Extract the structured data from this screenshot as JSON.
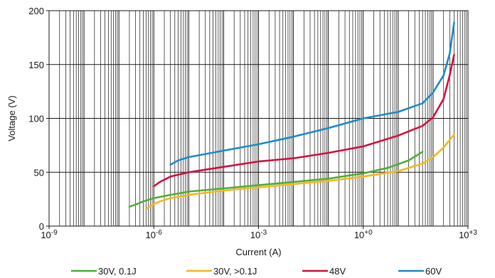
{
  "chart_data": {
    "type": "line",
    "title": "",
    "xlabel": "Current (A)",
    "ylabel": "Voltage (V)",
    "x_scale": "log",
    "xlim": [
      1e-09,
      1000
    ],
    "ylim": [
      0,
      200
    ],
    "x_ticks": [
      {
        "value": 1e-09,
        "base": "10",
        "exp": "-9"
      },
      {
        "value": 1e-06,
        "base": "10",
        "exp": "-6"
      },
      {
        "value": 0.001,
        "base": "10",
        "exp": "-3"
      },
      {
        "value": 1,
        "base": "10",
        "exp": "+0"
      },
      {
        "value": 1000,
        "base": "10",
        "exp": "+3"
      }
    ],
    "y_ticks": [
      {
        "value": 0,
        "label": "0"
      },
      {
        "value": 50,
        "label": "50"
      },
      {
        "value": 100,
        "label": "100"
      },
      {
        "value": 150,
        "label": "150"
      },
      {
        "value": 200,
        "label": "200"
      }
    ],
    "grid": true,
    "legend_position": "bottom",
    "series": [
      {
        "name": "30V, 0.1J",
        "color": "#4fae3b",
        "points": [
          [
            2e-07,
            18
          ],
          [
            3e-07,
            20
          ],
          [
            5e-07,
            23
          ],
          [
            1e-06,
            26
          ],
          [
            3e-06,
            29
          ],
          [
            1e-05,
            32
          ],
          [
            0.0001,
            35
          ],
          [
            0.001,
            38
          ],
          [
            0.01,
            41
          ],
          [
            0.1,
            44
          ],
          [
            1,
            49
          ],
          [
            5,
            54
          ],
          [
            20,
            61
          ],
          [
            50,
            69
          ]
        ]
      },
      {
        "name": "30V, >0.1J",
        "color": "#f5b81c",
        "points": [
          [
            6e-07,
            16
          ],
          [
            8e-07,
            19
          ],
          [
            1.5e-06,
            23
          ],
          [
            3e-06,
            26
          ],
          [
            1e-05,
            29
          ],
          [
            0.0001,
            33
          ],
          [
            0.001,
            36
          ],
          [
            0.01,
            39
          ],
          [
            0.1,
            42
          ],
          [
            1,
            46
          ],
          [
            10,
            51
          ],
          [
            50,
            58
          ],
          [
            100,
            64
          ],
          [
            200,
            73
          ],
          [
            400,
            85
          ]
        ]
      },
      {
        "name": "48V",
        "color": "#d2123f",
        "points": [
          [
            1e-06,
            37
          ],
          [
            1.5e-06,
            41
          ],
          [
            3e-06,
            46
          ],
          [
            1e-05,
            50
          ],
          [
            0.0001,
            55
          ],
          [
            0.001,
            60
          ],
          [
            0.01,
            63
          ],
          [
            0.1,
            68
          ],
          [
            1,
            74
          ],
          [
            10,
            84
          ],
          [
            50,
            93
          ],
          [
            100,
            101
          ],
          [
            200,
            118
          ],
          [
            300,
            140
          ],
          [
            400,
            159
          ]
        ]
      },
      {
        "name": "60V",
        "color": "#1c8cc8",
        "points": [
          [
            3e-06,
            57
          ],
          [
            5e-06,
            61
          ],
          [
            1e-05,
            64
          ],
          [
            0.0001,
            70
          ],
          [
            0.001,
            76
          ],
          [
            0.01,
            83
          ],
          [
            0.1,
            91
          ],
          [
            1,
            100
          ],
          [
            10,
            106
          ],
          [
            50,
            114
          ],
          [
            100,
            124
          ],
          [
            200,
            140
          ],
          [
            300,
            160
          ],
          [
            400,
            189
          ]
        ]
      }
    ]
  }
}
